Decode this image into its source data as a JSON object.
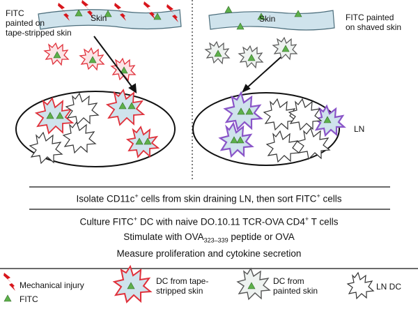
{
  "panels": {
    "left": {
      "skin_label": "Skin",
      "caption_lines": [
        "FITC",
        "painted on",
        "tape-stripped skin"
      ]
    },
    "right": {
      "skin_label": "Skin",
      "caption_lines": [
        "FITC painted",
        "on shaved skin"
      ]
    },
    "lymph_node_label": "LN"
  },
  "steps": {
    "isolate": {
      "pre": "Isolate CD11c",
      "sup1": "+",
      "mid": " cells from skin draining LN, then sort FITC",
      "sup2": "+",
      "post": " cells"
    },
    "culture": {
      "pre": "Culture FITC",
      "sup1": "+",
      "mid": " DC with naive DO.10.11 TCR-OVA CD4",
      "sup2": "+",
      "post": " T cells"
    },
    "stimulate": {
      "pre": "Stimulate with OVA",
      "sub": "323–339",
      "post": " peptide or OVA"
    },
    "measure": "Measure proliferation and cytokine secretion"
  },
  "legend": {
    "injury": "Mechanical injury",
    "fitc": "FITC",
    "dc_tape_lines": [
      "DC from tape-",
      "stripped skin"
    ],
    "dc_painted_lines": [
      "DC from",
      "painted skin"
    ],
    "ln_dc": "LN DC"
  },
  "colors": {
    "skin_fill": "#cfe3ec",
    "fitc_green": "#5db04a",
    "injury_red": "#d8161c",
    "tape_dc_outline": "#e0303a",
    "painted_dc_outline": "#555555",
    "ln_dc_fill_purple": "#8a55c8"
  }
}
